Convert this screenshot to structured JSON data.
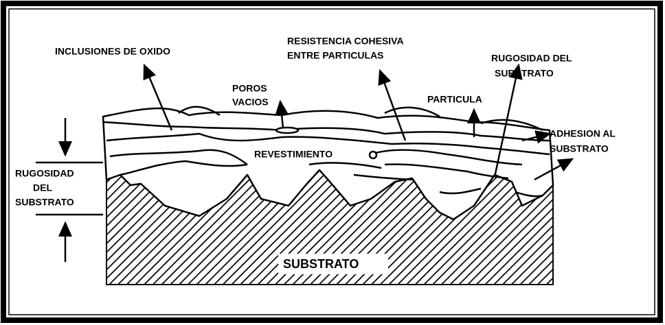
{
  "labels": [
    {
      "lines": [
        "INCLUSIONES DE OXIDO"
      ]
    },
    {
      "lines": [
        "POROS",
        "VACIOS"
      ]
    },
    {
      "lines": [
        "RESISTENCIA COHESIVA",
        "ENTRE PARTICULAS"
      ]
    },
    {
      "lines": [
        "RUGOSIDAD DEL",
        "SUBSTRATO"
      ]
    },
    {
      "lines": [
        "PARTICULA"
      ]
    },
    {
      "lines": [
        "ADHESION AL",
        "SUBSTRATO"
      ]
    },
    {
      "lines": [
        "REVESTIMIENTO"
      ]
    },
    {
      "lines": [
        "RUGOSIDAD",
        "DEL",
        "SUBSTRATO"
      ]
    },
    {
      "lines": [
        "SUBSTRATO"
      ]
    }
  ]
}
